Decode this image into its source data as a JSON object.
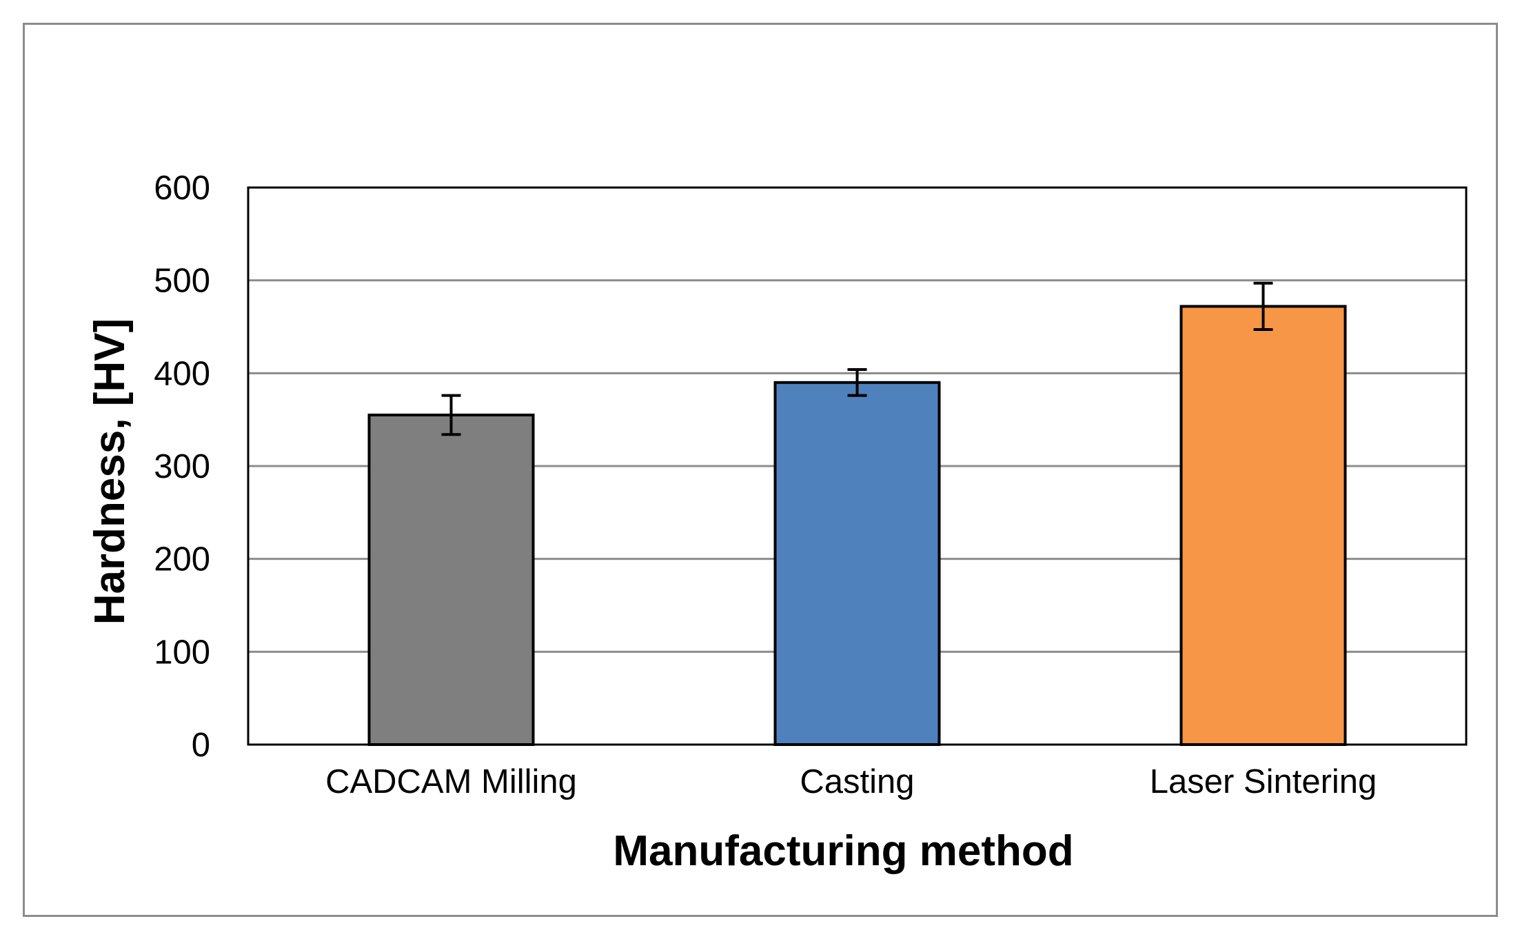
{
  "chart_data": {
    "type": "bar",
    "title": "",
    "xlabel": "Manufacturing method",
    "ylabel": "Hardness, [HV]",
    "ylim": [
      0,
      600
    ],
    "yticks": [
      0,
      100,
      200,
      300,
      400,
      500,
      600
    ],
    "grid": true,
    "legend": "none",
    "categories": [
      "CADCAM Milling",
      "Casting",
      "Laser Sintering"
    ],
    "values": [
      355,
      390,
      472
    ],
    "errors": [
      21,
      14,
      25
    ],
    "colors": [
      "#7f7f7f",
      "#4f81bd",
      "#f79646"
    ]
  }
}
